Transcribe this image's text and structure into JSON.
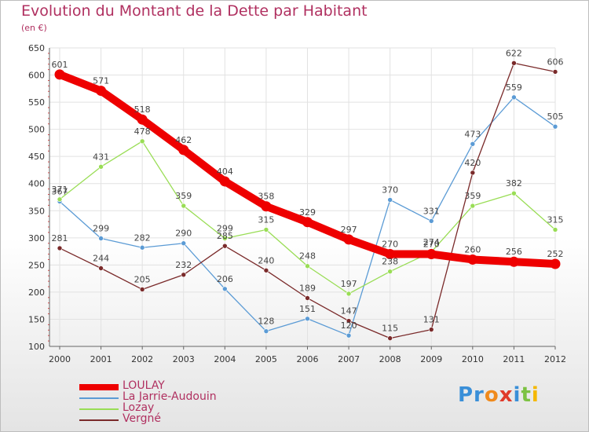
{
  "chart_data": {
    "type": "line",
    "title": "Evolution du Montant de la Dette par Habitant",
    "subtitle": "(en €)",
    "xlabel": "",
    "ylabel": "",
    "categories": [
      "2000",
      "2001",
      "2002",
      "2003",
      "2004",
      "2005",
      "2006",
      "2007",
      "2008",
      "2009",
      "2010",
      "2011",
      "2012"
    ],
    "ylim": [
      100,
      650
    ],
    "yticks": [
      "100",
      "150",
      "200",
      "250",
      "300",
      "350",
      "400",
      "450",
      "500",
      "550",
      "600",
      "650"
    ],
    "grid": true,
    "legend_position": "bottom-left",
    "series": [
      {
        "name": "LOULAY",
        "color": "#ee0000",
        "values": [
          601,
          571,
          518,
          462,
          404,
          358,
          329,
          297,
          270,
          270,
          260,
          256,
          252
        ],
        "labels": [
          "601",
          "571",
          "518",
          "462",
          "404",
          "358",
          "329",
          "297",
          "270",
          "270",
          "260",
          "256",
          "252"
        ]
      },
      {
        "name": "La Jarrie-Audouin",
        "color": "#5b9bd5",
        "values": [
          367,
          299,
          282,
          290,
          206,
          128,
          151,
          120,
          370,
          331,
          473,
          559,
          505
        ],
        "labels": [
          "367",
          "299",
          "282",
          "290",
          "206",
          "128",
          "151",
          "120",
          "370",
          "331",
          "473",
          "559",
          "505"
        ]
      },
      {
        "name": "Lozay",
        "color": "#99dd55",
        "values": [
          371,
          431,
          478,
          359,
          299,
          315,
          248,
          197,
          238,
          274,
          359,
          382,
          315
        ],
        "labels": [
          "371",
          "431",
          "478",
          "359",
          "299",
          "315",
          "248",
          "197",
          "238",
          "274",
          "359",
          "382",
          "315"
        ]
      },
      {
        "name": "Vergné",
        "color": "#7a2a2a",
        "values": [
          281,
          244,
          205,
          232,
          285,
          240,
          189,
          147,
          115,
          131,
          420,
          622,
          606
        ],
        "labels": [
          "281",
          "244",
          "205",
          "232",
          "285",
          "240",
          "189",
          "147",
          "115",
          "131",
          "420",
          "622",
          "606"
        ]
      }
    ]
  },
  "logo": {
    "parts": [
      {
        "text": "Pr",
        "color": "#3a8fd8"
      },
      {
        "text": "o",
        "color": "#f08a1c"
      },
      {
        "text": "x",
        "color": "#e03a2a"
      },
      {
        "text": "i",
        "color": "#3a8fd8"
      },
      {
        "text": "t",
        "color": "#7cc242"
      },
      {
        "text": "i",
        "color": "#f5b800"
      }
    ]
  }
}
